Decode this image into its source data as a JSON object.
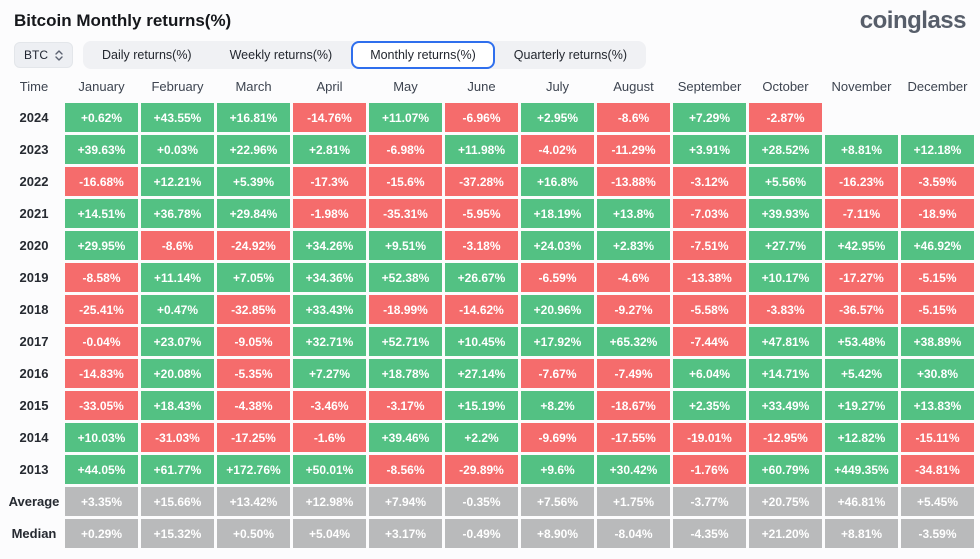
{
  "header": {
    "title": "Bitcoin Monthly returns(%)",
    "logo": "coinglass"
  },
  "controls": {
    "symbol_select": {
      "value": "BTC",
      "icon": "sort-updown-icon"
    },
    "tabs": [
      {
        "label": "Daily returns(%)",
        "active": false
      },
      {
        "label": "Weekly returns(%)",
        "active": false
      },
      {
        "label": "Monthly returns(%)",
        "active": true
      },
      {
        "label": "Quarterly returns(%)",
        "active": false
      }
    ]
  },
  "colors": {
    "positive": "#53c183",
    "negative": "#f56c6c",
    "neutral": "#b9babb",
    "tab_active_border": "#2f6fed"
  },
  "chart_data": {
    "type": "heatmap",
    "title": "Bitcoin Monthly returns(%)",
    "unit": "%",
    "columns": [
      "Time",
      "January",
      "February",
      "March",
      "April",
      "May",
      "June",
      "July",
      "August",
      "September",
      "October",
      "November",
      "December"
    ],
    "rows": [
      {
        "label": "2024",
        "type": "year",
        "cells": [
          "+0.62%",
          "+43.55%",
          "+16.81%",
          "-14.76%",
          "+11.07%",
          "-6.96%",
          "+2.95%",
          "-8.6%",
          "+7.29%",
          "-2.87%",
          "",
          ""
        ]
      },
      {
        "label": "2023",
        "type": "year",
        "cells": [
          "+39.63%",
          "+0.03%",
          "+22.96%",
          "+2.81%",
          "-6.98%",
          "+11.98%",
          "-4.02%",
          "-11.29%",
          "+3.91%",
          "+28.52%",
          "+8.81%",
          "+12.18%"
        ]
      },
      {
        "label": "2022",
        "type": "year",
        "cells": [
          "-16.68%",
          "+12.21%",
          "+5.39%",
          "-17.3%",
          "-15.6%",
          "-37.28%",
          "+16.8%",
          "-13.88%",
          "-3.12%",
          "+5.56%",
          "-16.23%",
          "-3.59%"
        ]
      },
      {
        "label": "2021",
        "type": "year",
        "cells": [
          "+14.51%",
          "+36.78%",
          "+29.84%",
          "-1.98%",
          "-35.31%",
          "-5.95%",
          "+18.19%",
          "+13.8%",
          "-7.03%",
          "+39.93%",
          "-7.11%",
          "-18.9%"
        ]
      },
      {
        "label": "2020",
        "type": "year",
        "cells": [
          "+29.95%",
          "-8.6%",
          "-24.92%",
          "+34.26%",
          "+9.51%",
          "-3.18%",
          "+24.03%",
          "+2.83%",
          "-7.51%",
          "+27.7%",
          "+42.95%",
          "+46.92%"
        ]
      },
      {
        "label": "2019",
        "type": "year",
        "cells": [
          "-8.58%",
          "+11.14%",
          "+7.05%",
          "+34.36%",
          "+52.38%",
          "+26.67%",
          "-6.59%",
          "-4.6%",
          "-13.38%",
          "+10.17%",
          "-17.27%",
          "-5.15%"
        ]
      },
      {
        "label": "2018",
        "type": "year",
        "cells": [
          "-25.41%",
          "+0.47%",
          "-32.85%",
          "+33.43%",
          "-18.99%",
          "-14.62%",
          "+20.96%",
          "-9.27%",
          "-5.58%",
          "-3.83%",
          "-36.57%",
          "-5.15%"
        ]
      },
      {
        "label": "2017",
        "type": "year",
        "cells": [
          "-0.04%",
          "+23.07%",
          "-9.05%",
          "+32.71%",
          "+52.71%",
          "+10.45%",
          "+17.92%",
          "+65.32%",
          "-7.44%",
          "+47.81%",
          "+53.48%",
          "+38.89%"
        ]
      },
      {
        "label": "2016",
        "type": "year",
        "cells": [
          "-14.83%",
          "+20.08%",
          "-5.35%",
          "+7.27%",
          "+18.78%",
          "+27.14%",
          "-7.67%",
          "-7.49%",
          "+6.04%",
          "+14.71%",
          "+5.42%",
          "+30.8%"
        ]
      },
      {
        "label": "2015",
        "type": "year",
        "cells": [
          "-33.05%",
          "+18.43%",
          "-4.38%",
          "-3.46%",
          "-3.17%",
          "+15.19%",
          "+8.2%",
          "-18.67%",
          "+2.35%",
          "+33.49%",
          "+19.27%",
          "+13.83%"
        ]
      },
      {
        "label": "2014",
        "type": "year",
        "cells": [
          "+10.03%",
          "-31.03%",
          "-17.25%",
          "-1.6%",
          "+39.46%",
          "+2.2%",
          "-9.69%",
          "-17.55%",
          "-19.01%",
          "-12.95%",
          "+12.82%",
          "-15.11%"
        ]
      },
      {
        "label": "2013",
        "type": "year",
        "cells": [
          "+44.05%",
          "+61.77%",
          "+172.76%",
          "+50.01%",
          "-8.56%",
          "-29.89%",
          "+9.6%",
          "+30.42%",
          "-1.76%",
          "+60.79%",
          "+449.35%",
          "-34.81%"
        ]
      },
      {
        "label": "Average",
        "type": "summary",
        "cells": [
          "+3.35%",
          "+15.66%",
          "+13.42%",
          "+12.98%",
          "+7.94%",
          "-0.35%",
          "+7.56%",
          "+1.75%",
          "-3.77%",
          "+20.75%",
          "+46.81%",
          "+5.45%"
        ]
      },
      {
        "label": "Median",
        "type": "summary",
        "cells": [
          "+0.29%",
          "+15.32%",
          "+0.50%",
          "+5.04%",
          "+3.17%",
          "-0.49%",
          "+8.90%",
          "-8.04%",
          "-4.35%",
          "+21.20%",
          "+8.81%",
          "-3.59%"
        ]
      }
    ]
  }
}
